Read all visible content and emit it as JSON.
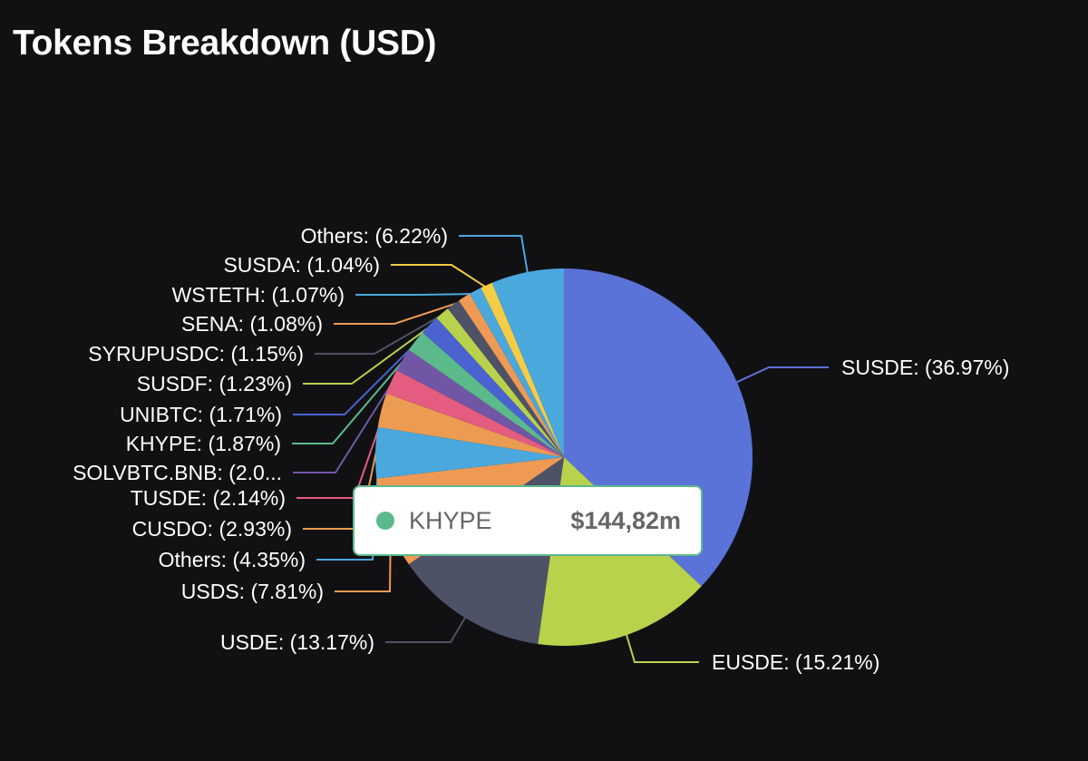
{
  "title": "Tokens Breakdown (USD)",
  "chart_data": {
    "type": "pie",
    "title": "Tokens Breakdown (USD)",
    "unit": "%",
    "slices": [
      {
        "name": "SUSDE",
        "value": 36.97,
        "label": "SUSDE: (36.97%)",
        "color": "#5a73d8"
      },
      {
        "name": "EUSDE",
        "value": 15.21,
        "label": "EUSDE: (15.21%)",
        "color": "#b8d24c"
      },
      {
        "name": "USDE",
        "value": 13.17,
        "label": "USDE: (13.17%)",
        "color": "#4e5267"
      },
      {
        "name": "USDS",
        "value": 7.81,
        "label": "USDS: (7.81%)",
        "color": "#ee9a55"
      },
      {
        "name": "Others",
        "value": 4.35,
        "label": "Others: (4.35%)",
        "color": "#4aa8dd"
      },
      {
        "name": "CUSDO",
        "value": 2.93,
        "label": "CUSDO: (2.93%)",
        "color": "#eb9c52"
      },
      {
        "name": "TUSDE",
        "value": 2.14,
        "label": "TUSDE: (2.14%)",
        "color": "#e45c80"
      },
      {
        "name": "SOLVBTC.BNB",
        "value": 2.0,
        "label": "SOLVBTC.BNB: (2.0...",
        "color": "#7256a6"
      },
      {
        "name": "KHYPE",
        "value": 1.87,
        "label": "KHYPE: (1.87%)",
        "color": "#5bb98c"
      },
      {
        "name": "UNIBTC",
        "value": 1.71,
        "label": "UNIBTC: (1.71%)",
        "color": "#4a63d0"
      },
      {
        "name": "SUSDF",
        "value": 1.23,
        "label": "SUSDF: (1.23%)",
        "color": "#b8d24c"
      },
      {
        "name": "SYRUPUSDC",
        "value": 1.15,
        "label": "SYRUPUSDC: (1.15%)",
        "color": "#4e5267"
      },
      {
        "name": "SENA",
        "value": 1.08,
        "label": "SENA: (1.08%)",
        "color": "#ee9a55"
      },
      {
        "name": "WSTETH",
        "value": 1.07,
        "label": "WSTETH: (1.07%)",
        "color": "#4aa8dd"
      },
      {
        "name": "SUSDA",
        "value": 1.04,
        "label": "SUSDA: (1.04%)",
        "color": "#f5cc45"
      },
      {
        "name": "Others",
        "value": 6.22,
        "label": "Others: (6.22%)",
        "color": "#4aa8dd"
      }
    ]
  },
  "tooltip": {
    "name": "KHYPE",
    "value": "$144,82m",
    "color": "#5bb98c"
  }
}
